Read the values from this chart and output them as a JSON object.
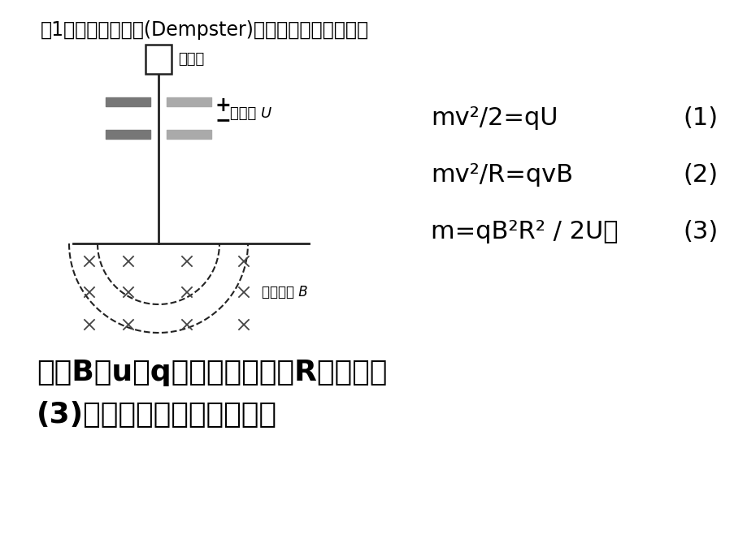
{
  "bg_color": "#ffffff",
  "title_line": "（1）这是丹普斯特(Dempster)设计的质谱仪的原理。",
  "label_ion_source": "离子源",
  "label_voltage": "电势差 U",
  "label_field": "均匀磁场 B",
  "eq1": "mv²/2=qU",
  "eq2": "mv²/R=qvB",
  "eq3": "m=qB²R² / 2U。",
  "eq_num1": "(1)",
  "eq_num2": "(2)",
  "eq_num3": "(3)",
  "bottom_text1": "如果B、u和q是已知的，测出R后就可由",
  "bottom_text2": "(3)式算出带电粒子的质量。",
  "diagram_color": "#222222",
  "cross_color": "#444444"
}
